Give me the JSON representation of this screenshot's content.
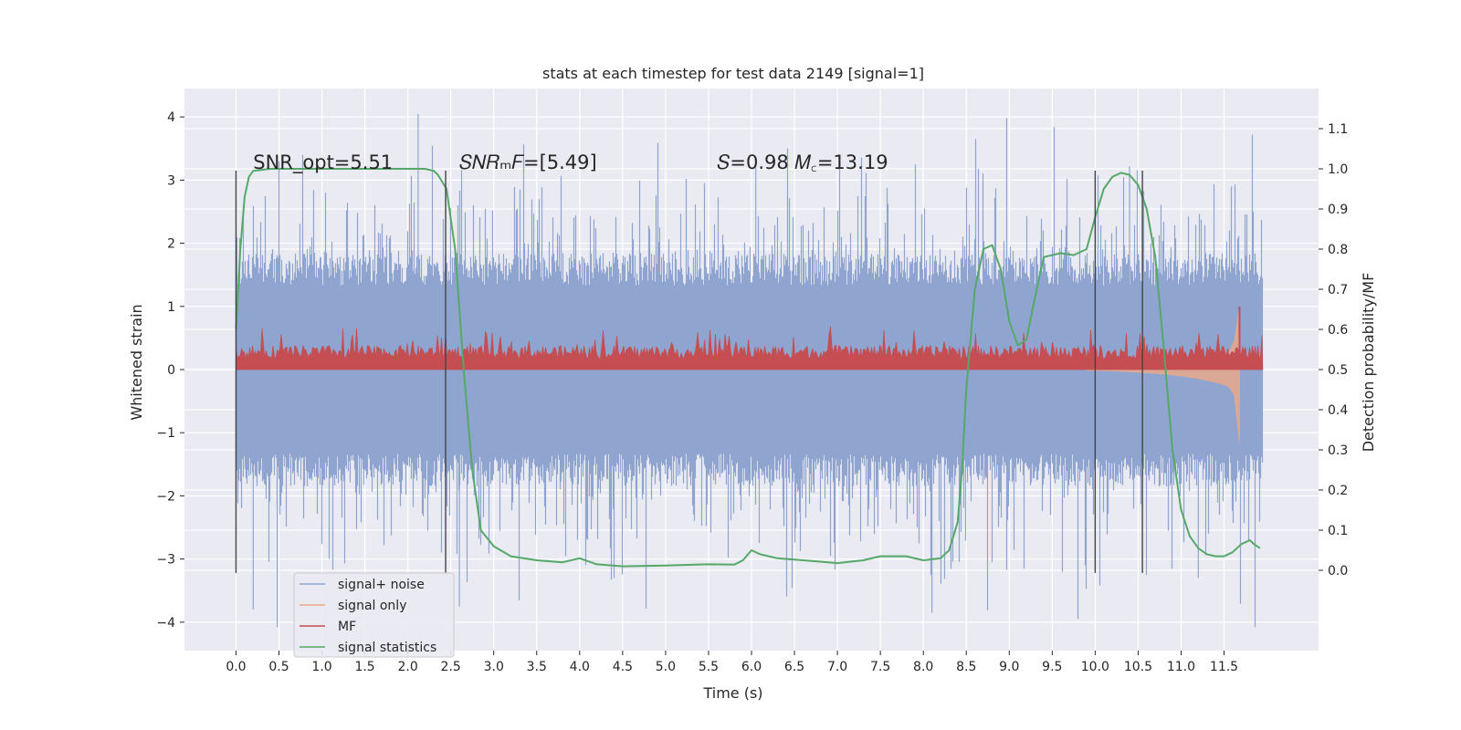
{
  "chart_data": {
    "type": "line",
    "title": "stats at each timestep for test data 2149 [signal=1]",
    "xlabel": "Time (s)",
    "ylabel": "Whitened strain",
    "y2label": "Detection probability/MF",
    "xlim": [
      -0.6,
      12.6
    ],
    "ylim": [
      -4.45,
      4.45
    ],
    "y2lim": [
      -0.2,
      1.2
    ],
    "x_ticks": [
      0.0,
      0.5,
      1.0,
      1.5,
      2.0,
      2.5,
      3.0,
      3.5,
      4.0,
      4.5,
      5.0,
      5.5,
      6.0,
      6.5,
      7.0,
      7.5,
      8.0,
      8.5,
      9.0,
      9.5,
      10.0,
      10.5,
      11.0,
      11.5
    ],
    "x_tick_labels": [
      "0.0",
      "0.5",
      "1.0",
      "1.5",
      "2.0",
      "2.5",
      "3.0",
      "3.5",
      "4.0",
      "4.5",
      "5.0",
      "5.5",
      "6.0",
      "6.5",
      "7.0",
      "7.5",
      "8.0",
      "8.5",
      "9.0",
      "9.5",
      "10.0",
      "10.5",
      "11.0",
      "11.5"
    ],
    "y_ticks": [
      4,
      3,
      2,
      1,
      0,
      -1,
      -2,
      -3,
      -4
    ],
    "y_tick_labels": [
      "4",
      "3",
      "2",
      "1",
      "0",
      "−1",
      "−2",
      "−3",
      "−4"
    ],
    "y2_ticks": [
      1.1,
      1.0,
      0.9,
      0.8,
      0.7,
      0.6,
      0.5,
      0.4,
      0.3,
      0.2,
      0.1,
      0.0
    ],
    "y2_tick_labels": [
      "1.1",
      "1.0",
      "0.9",
      "0.8",
      "0.7",
      "0.6",
      "0.5",
      "0.4",
      "0.3",
      "0.2",
      "0.1",
      "0.0"
    ],
    "grid": true,
    "legend_placement": "lower-left",
    "colors": {
      "noise": "#8fa5d0",
      "signal_only": "#e8a88b",
      "mf": "#c44e52",
      "stat": "#55a868",
      "vline": "#444444",
      "plot_bg": "#eaeaf2",
      "grid": "#ffffff"
    },
    "annotations": [
      {
        "x": 0.2,
        "y": 3.18,
        "text": "SNR_opt=5.51"
      },
      {
        "x": 2.6,
        "y": 3.18,
        "text": "𝑆𝑁𝑅ₘ𝐹=[5.49]"
      },
      {
        "x": 5.6,
        "y": 3.18,
        "text": "𝑆=0.98   𝑀꜀=13.19"
      }
    ],
    "vertical_lines": [
      {
        "x": 0.0,
        "y_top": 3.15,
        "y_bottom": -3.22
      },
      {
        "x": 2.44,
        "y_top": 3.15,
        "y_bottom": -3.22
      },
      {
        "x": 10.0,
        "y_top": 3.15,
        "y_bottom": -3.22
      },
      {
        "x": 10.55,
        "y_top": 3.15,
        "y_bottom": -3.22
      }
    ],
    "series": [
      {
        "name": "signal+ noise",
        "kind": "noise_band",
        "x_range": [
          0.0,
          11.95
        ],
        "band_upper_typical": 1.85,
        "band_lower_typical": -1.85,
        "peak_max": 4.05,
        "peak_min": -4.08
      },
      {
        "name": "signal only",
        "kind": "chirp",
        "x_range": [
          9.9,
          11.68
        ],
        "x": [
          9.9,
          10.2,
          10.5,
          10.8,
          11.0,
          11.2,
          11.4,
          11.55,
          11.62,
          11.68
        ],
        "lower": [
          -0.01,
          -0.02,
          -0.04,
          -0.07,
          -0.1,
          -0.14,
          -0.2,
          -0.26,
          -0.4,
          -1.15
        ],
        "upper": [
          0.01,
          0.02,
          0.03,
          0.06,
          0.08,
          0.12,
          0.17,
          0.25,
          0.45,
          1.0
        ]
      },
      {
        "name": "MF",
        "kind": "mf_band",
        "x_range": [
          0.0,
          11.95
        ],
        "baseline": 0.0,
        "typical_top": 0.38,
        "peak_max": 0.68
      },
      {
        "name": "signal statistics",
        "kind": "line",
        "axis": "y2",
        "x": [
          0.0,
          0.05,
          0.1,
          0.15,
          0.2,
          0.4,
          0.8,
          1.2,
          1.6,
          2.0,
          2.2,
          2.3,
          2.35,
          2.45,
          2.55,
          2.65,
          2.75,
          2.85,
          3.0,
          3.2,
          3.5,
          3.8,
          4.0,
          4.2,
          4.5,
          5.0,
          5.5,
          5.8,
          5.9,
          6.0,
          6.1,
          6.3,
          6.6,
          7.0,
          7.3,
          7.5,
          7.8,
          8.0,
          8.2,
          8.3,
          8.4,
          8.45,
          8.5,
          8.6,
          8.7,
          8.8,
          8.9,
          9.0,
          9.1,
          9.2,
          9.3,
          9.4,
          9.6,
          9.75,
          9.9,
          10.0,
          10.1,
          10.2,
          10.3,
          10.4,
          10.5,
          10.6,
          10.7,
          10.8,
          10.9,
          11.0,
          11.1,
          11.2,
          11.3,
          11.4,
          11.5,
          11.6,
          11.7,
          11.8,
          11.85,
          11.92
        ],
        "values": [
          0.6,
          0.8,
          0.93,
          0.98,
          0.995,
          1.0,
          1.0,
          1.0,
          1.0,
          1.0,
          1.0,
          0.995,
          0.985,
          0.95,
          0.8,
          0.5,
          0.25,
          0.1,
          0.06,
          0.035,
          0.025,
          0.02,
          0.03,
          0.015,
          0.01,
          0.012,
          0.015,
          0.014,
          0.025,
          0.05,
          0.04,
          0.03,
          0.025,
          0.018,
          0.025,
          0.035,
          0.035,
          0.025,
          0.03,
          0.05,
          0.12,
          0.25,
          0.45,
          0.7,
          0.8,
          0.81,
          0.75,
          0.62,
          0.56,
          0.575,
          0.68,
          0.78,
          0.79,
          0.785,
          0.8,
          0.88,
          0.95,
          0.98,
          0.99,
          0.985,
          0.96,
          0.9,
          0.78,
          0.55,
          0.3,
          0.15,
          0.085,
          0.055,
          0.04,
          0.035,
          0.035,
          0.045,
          0.065,
          0.075,
          0.065,
          0.055
        ]
      }
    ]
  }
}
